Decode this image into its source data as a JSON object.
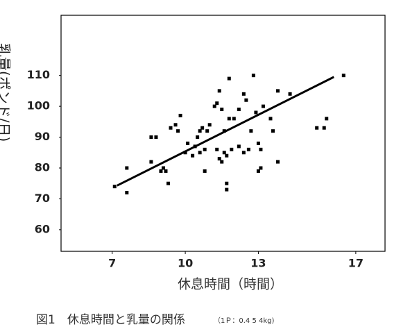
{
  "chart_data": {
    "type": "scatter",
    "xlabel": "休息時間（時間）",
    "ylabel": "乳量(ポンド/日)",
    "caption": "図1　休息時間と乳量の関係",
    "caption_note": "（1Ｐ：0.4 5 4kg)",
    "xlim": [
      4.9,
      18.2
    ],
    "xticks": [
      7,
      10,
      13,
      17
    ],
    "ylim": [
      53,
      129.5
    ],
    "yticks": [
      60,
      70,
      80,
      90,
      100,
      110
    ],
    "color": "#000000",
    "x": [
      7.1,
      7.6,
      7.6,
      8.6,
      8.8,
      8.6,
      9.0,
      9.1,
      9.2,
      9.3,
      9.4,
      9.6,
      9.8,
      9.7,
      10.1,
      10.0,
      10.3,
      10.4,
      10.5,
      10.6,
      10.7,
      10.8,
      10.9,
      10.6,
      10.8,
      11.0,
      11.2,
      11.3,
      11.4,
      11.5,
      11.3,
      11.4,
      11.5,
      11.6,
      11.7,
      11.8,
      11.7,
      11.7,
      11.9,
      12.0,
      11.6,
      11.8,
      12.2,
      12.4,
      12.6,
      12.7,
      12.4,
      12.8,
      12.9,
      13.0,
      13.1,
      13.0,
      13.1,
      13.2,
      13.5,
      13.6,
      13.8,
      13.8,
      14.3,
      15.4,
      15.7,
      15.8,
      16.5,
      12.2,
      12.5
    ],
    "y": [
      74,
      80,
      72,
      90,
      90,
      82,
      79,
      80,
      79,
      75,
      93,
      94,
      97,
      92,
      88,
      85,
      84,
      87,
      90,
      92,
      93,
      86,
      92,
      85,
      79,
      94,
      100,
      101,
      105,
      99,
      86,
      83,
      82,
      85,
      84,
      109,
      75,
      73,
      86,
      96,
      92,
      96,
      87,
      85,
      86,
      92,
      104,
      110,
      98,
      88,
      86,
      79,
      80,
      100,
      96,
      92,
      82,
      105,
      104,
      93,
      93,
      96,
      110,
      99,
      102
    ],
    "trendline": {
      "x": [
        7.2,
        16.1
      ],
      "y": [
        74.3,
        109.5
      ]
    }
  }
}
